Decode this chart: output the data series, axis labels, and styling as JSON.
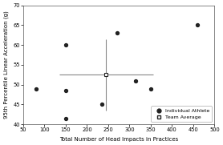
{
  "individual_x": [
    80,
    150,
    150,
    150,
    235,
    270,
    315,
    350,
    460
  ],
  "individual_y": [
    49,
    60,
    48.5,
    41.5,
    45,
    63,
    51,
    49,
    65
  ],
  "team_avg_x": 245,
  "team_avg_y": 52.5,
  "team_avg_xerr": 110,
  "team_avg_yerr": 9,
  "xlim": [
    50,
    500
  ],
  "ylim": [
    40,
    70
  ],
  "xticks": [
    50,
    100,
    150,
    200,
    250,
    300,
    350,
    400,
    450,
    500
  ],
  "yticks": [
    40,
    45,
    50,
    55,
    60,
    65,
    70
  ],
  "xlabel": "Total Number of Head Impacts in Practices",
  "ylabel": "95th Percentile Linear Acceleration (g)",
  "legend_individual": "Individual Athlete",
  "legend_team": "Team Average",
  "dot_color": "#222222",
  "error_color": "#888888",
  "bg_color": "#ffffff"
}
